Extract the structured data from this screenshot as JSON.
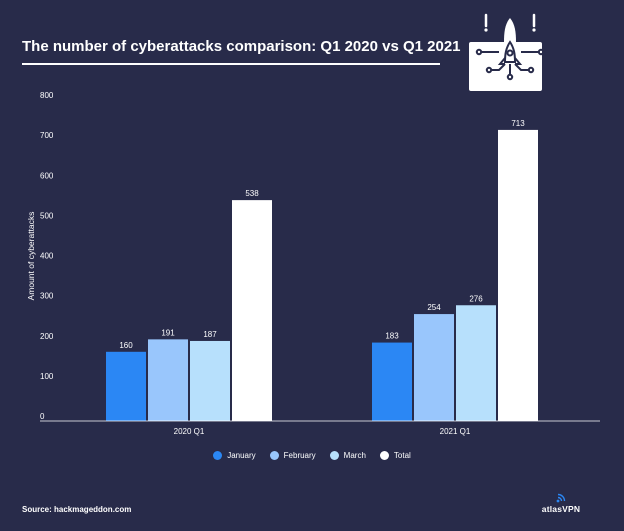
{
  "chart_data": {
    "type": "bar",
    "title": "The number of cyberattacks comparison: Q1 2020 vs Q1 2021",
    "xlabel": "",
    "ylabel": "Amount of cyberattacks",
    "categories": [
      "2020 Q1",
      "2021 Q1"
    ],
    "series": [
      {
        "name": "January",
        "color": "#2b87f4",
        "values": [
          160,
          183
        ]
      },
      {
        "name": "February",
        "color": "#99c6fc",
        "values": [
          191,
          254
        ]
      },
      {
        "name": "March",
        "color": "#b7e0fc",
        "values": [
          187,
          276
        ]
      },
      {
        "name": "Total",
        "color": "#ffffff",
        "values": [
          538,
          713
        ]
      }
    ],
    "ylim": [
      0,
      800
    ],
    "yticks": [
      0,
      100,
      200,
      300,
      400,
      500,
      600,
      700,
      800
    ],
    "grid": false,
    "legend_position": "bottom"
  },
  "footer": {
    "source": "Source: hackmageddon.com",
    "brand_prefix": "atlas",
    "brand_suffix": "VPN"
  },
  "icons": {
    "header_icon": "rocket-circuit-icon",
    "brand_icon": "signal-icon"
  }
}
